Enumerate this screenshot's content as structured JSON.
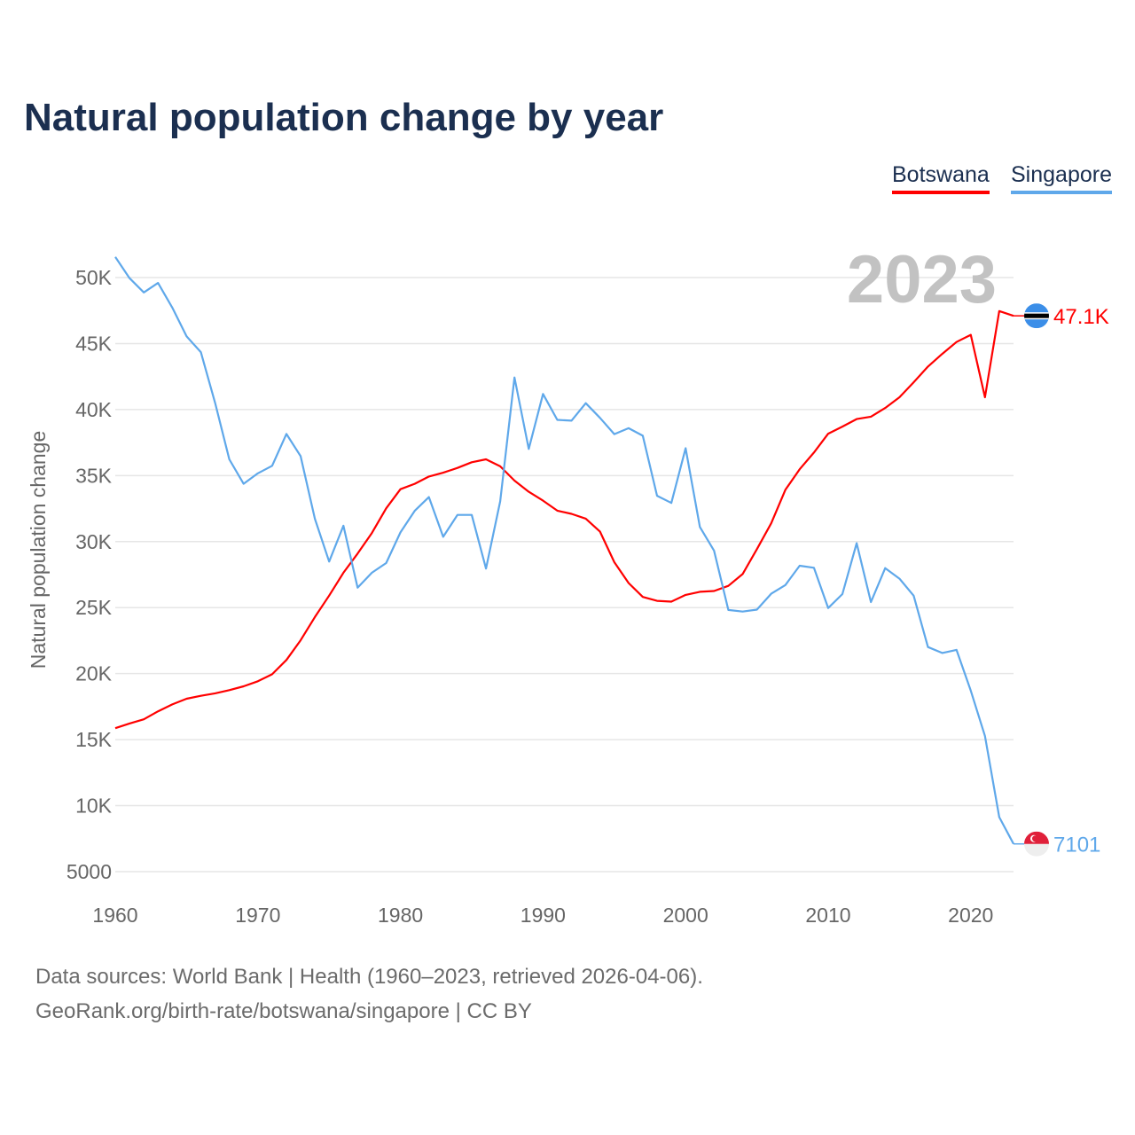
{
  "chart_data": {
    "type": "line",
    "title": "Natural population change by year",
    "xlabel": "",
    "ylabel": "Natural population change",
    "xlim": [
      1960,
      2023
    ],
    "ylim": [
      5000,
      50000
    ],
    "x_ticks": [
      "1960",
      "1970",
      "1980",
      "1990",
      "2000",
      "2010",
      "2020"
    ],
    "y_ticks": [
      {
        "value": 5000,
        "label": "5000"
      },
      {
        "value": 10000,
        "label": "10K"
      },
      {
        "value": 15000,
        "label": "15K"
      },
      {
        "value": 20000,
        "label": "20K"
      },
      {
        "value": 25000,
        "label": "25K"
      },
      {
        "value": 30000,
        "label": "30K"
      },
      {
        "value": 35000,
        "label": "35K"
      },
      {
        "value": 40000,
        "label": "40K"
      },
      {
        "value": 45000,
        "label": "45K"
      },
      {
        "value": 50000,
        "label": "50K"
      }
    ],
    "grid": true,
    "legend_position": "top-right",
    "year_watermark": "2023",
    "x": [
      1960,
      1961,
      1962,
      1963,
      1964,
      1965,
      1966,
      1967,
      1968,
      1969,
      1970,
      1971,
      1972,
      1973,
      1974,
      1975,
      1976,
      1977,
      1978,
      1979,
      1980,
      1981,
      1982,
      1983,
      1984,
      1985,
      1986,
      1987,
      1988,
      1989,
      1990,
      1991,
      1992,
      1993,
      1994,
      1995,
      1996,
      1997,
      1998,
      1999,
      2000,
      2001,
      2002,
      2003,
      2004,
      2005,
      2006,
      2007,
      2008,
      2009,
      2010,
      2011,
      2012,
      2013,
      2014,
      2015,
      2016,
      2017,
      2018,
      2019,
      2020,
      2021,
      2022,
      2023
    ],
    "series": [
      {
        "name": "Botswana",
        "color": "#ff0000",
        "end_label": "47.1K",
        "flag_icon": "botswana-flag-icon",
        "values": [
          15870,
          16220,
          16540,
          17140,
          17670,
          18100,
          18320,
          18510,
          18750,
          19040,
          19420,
          19950,
          21030,
          22520,
          24280,
          25910,
          27640,
          29090,
          30650,
          32520,
          33970,
          34380,
          34930,
          35220,
          35580,
          36010,
          36230,
          35700,
          34620,
          33770,
          33100,
          32340,
          32100,
          31740,
          30750,
          28440,
          26860,
          25810,
          25510,
          25450,
          25960,
          26200,
          26260,
          26650,
          27540,
          29430,
          31380,
          33920,
          35480,
          36740,
          38170,
          38710,
          39280,
          39460,
          40120,
          40930,
          42070,
          43260,
          44220,
          45120,
          45660,
          40930,
          47460,
          47100
        ]
      },
      {
        "name": "Singapore",
        "color": "#5fa8ea",
        "end_label": "7101",
        "flag_icon": "singapore-flag-icon",
        "values": [
          51560,
          49950,
          48870,
          49590,
          47720,
          45550,
          44350,
          40500,
          36230,
          34380,
          35170,
          35740,
          38150,
          36470,
          31730,
          28490,
          31200,
          26510,
          27640,
          28370,
          30700,
          32330,
          33370,
          30360,
          32020,
          32020,
          27960,
          33050,
          42430,
          37020,
          41180,
          39220,
          39160,
          40480,
          39370,
          38140,
          38590,
          38020,
          33470,
          32930,
          37070,
          31110,
          29310,
          24820,
          24700,
          24850,
          26050,
          26710,
          28170,
          28020,
          24970,
          26020,
          29880,
          25420,
          27990,
          27190,
          25900,
          22010,
          21560,
          21800,
          18710,
          15270,
          9130,
          7101
        ]
      }
    ]
  },
  "footer": {
    "line1": "Data sources: World Bank | Health (1960–2023, retrieved 2026-04-06).",
    "line2": "GeoRank.org/birth-rate/botswana/singapore | CC BY"
  }
}
